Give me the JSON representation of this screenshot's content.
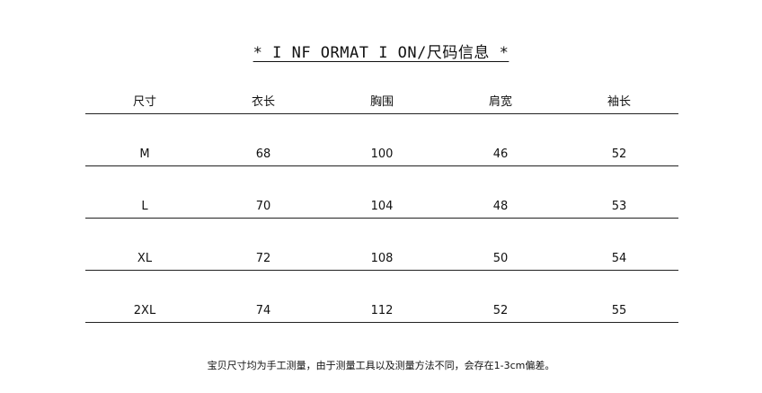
{
  "title": "* I NF ORMAT I ON/尺码信息 *",
  "table": {
    "headers": [
      "尺寸",
      "衣长",
      "胸围",
      "肩宽",
      "袖长"
    ],
    "rows": [
      [
        "M",
        "68",
        "100",
        "46",
        "52"
      ],
      [
        "L",
        "70",
        "104",
        "48",
        "53"
      ],
      [
        "XL",
        "72",
        "108",
        "50",
        "54"
      ],
      [
        "2XL",
        "74",
        "112",
        "52",
        "55"
      ]
    ]
  },
  "note": "宝贝尺寸均为手工测量，由于测量工具以及测量方法不同，会存在1-3cm偏差。"
}
